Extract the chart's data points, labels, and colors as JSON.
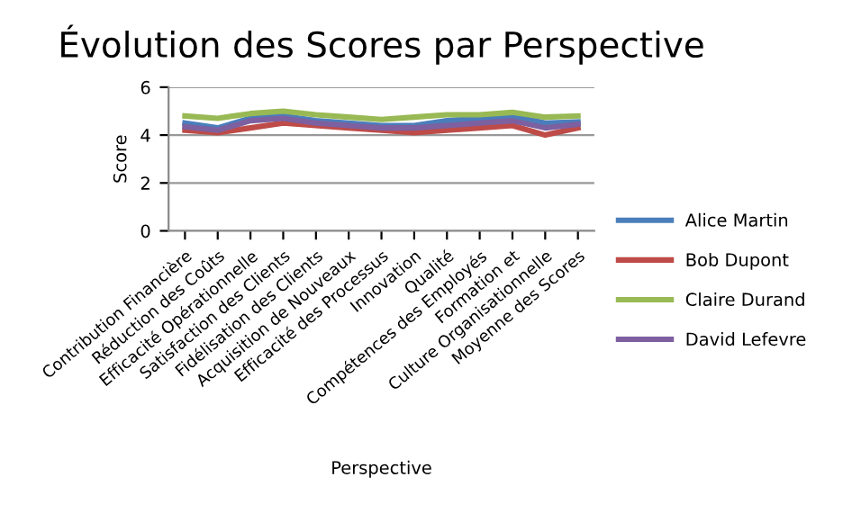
{
  "chart_data": {
    "type": "line",
    "title": "Évolution des Scores par Perspective",
    "xlabel": "Perspective",
    "ylabel": "Score",
    "categories": [
      "Contribution Financière",
      "Réduction des Coûts",
      "Efficacité Opérationnelle",
      "Satisfaction des Clients",
      "Fidélisation des Clients",
      "Acquisition de Nouveaux",
      "Efficacité des Processus",
      "Innovation",
      "Qualité",
      "Compétences des Employés",
      "Formation et",
      "Culture Organisationnelle",
      "Moyenne des Scores"
    ],
    "series": [
      {
        "name": "Alice Martin",
        "color": "#4a7ebb",
        "values": [
          4.5,
          4.3,
          4.7,
          4.8,
          4.6,
          4.5,
          4.4,
          4.4,
          4.6,
          4.7,
          4.8,
          4.5,
          4.55
        ]
      },
      {
        "name": "Bob Dupont",
        "color": "#be4b48",
        "values": [
          4.2,
          4.1,
          4.3,
          4.5,
          4.4,
          4.3,
          4.2,
          4.1,
          4.2,
          4.3,
          4.4,
          4.0,
          4.3
        ]
      },
      {
        "name": "Claire Durand",
        "color": "#98b954",
        "values": [
          4.8,
          4.7,
          4.9,
          5.0,
          4.85,
          4.75,
          4.65,
          4.75,
          4.85,
          4.85,
          4.95,
          4.75,
          4.8
        ]
      },
      {
        "name": "David Lefevre",
        "color": "#7d60a0",
        "values": [
          4.35,
          4.2,
          4.6,
          4.7,
          4.5,
          4.4,
          4.3,
          4.3,
          4.4,
          4.5,
          4.6,
          4.3,
          4.45
        ]
      }
    ],
    "ylim": [
      0,
      6
    ],
    "yticks": [
      0,
      2,
      4,
      6
    ],
    "grid": "y",
    "legend": "right",
    "marker": "none",
    "line_style": "solid"
  }
}
